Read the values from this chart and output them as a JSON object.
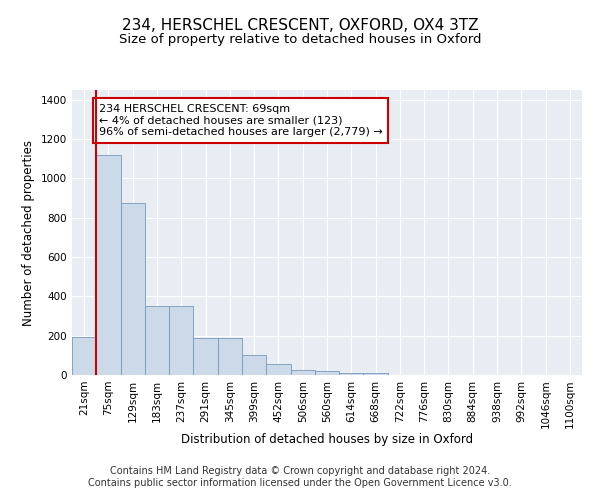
{
  "title": "234, HERSCHEL CRESCENT, OXFORD, OX4 3TZ",
  "subtitle": "Size of property relative to detached houses in Oxford",
  "xlabel": "Distribution of detached houses by size in Oxford",
  "ylabel": "Number of detached properties",
  "annotation_line1": "234 HERSCHEL CRESCENT: 69sqm",
  "annotation_line2": "← 4% of detached houses are smaller (123)",
  "annotation_line3": "96% of semi-detached houses are larger (2,779) →",
  "bar_labels": [
    "21sqm",
    "75sqm",
    "129sqm",
    "183sqm",
    "237sqm",
    "291sqm",
    "345sqm",
    "399sqm",
    "452sqm",
    "506sqm",
    "560sqm",
    "614sqm",
    "668sqm",
    "722sqm",
    "776sqm",
    "830sqm",
    "884sqm",
    "938sqm",
    "992sqm",
    "1046sqm",
    "1100sqm"
  ],
  "bar_values": [
    195,
    1120,
    875,
    350,
    350,
    190,
    190,
    100,
    55,
    25,
    22,
    10,
    10,
    0,
    0,
    0,
    0,
    0,
    0,
    0,
    0
  ],
  "bar_color": "#ccd9e8",
  "bar_edge_color": "#7799bb",
  "vline_color": "#cc0000",
  "ylim": [
    0,
    1450
  ],
  "yticks": [
    0,
    200,
    400,
    600,
    800,
    1000,
    1200,
    1400
  ],
  "bg_color": "#e8edf4",
  "grid_color": "#ffffff",
  "footer_text": "Contains HM Land Registry data © Crown copyright and database right 2024.\nContains public sector information licensed under the Open Government Licence v3.0.",
  "title_fontsize": 11,
  "subtitle_fontsize": 9.5,
  "axis_label_fontsize": 8.5,
  "tick_fontsize": 7.5,
  "annotation_fontsize": 8,
  "footer_fontsize": 7
}
